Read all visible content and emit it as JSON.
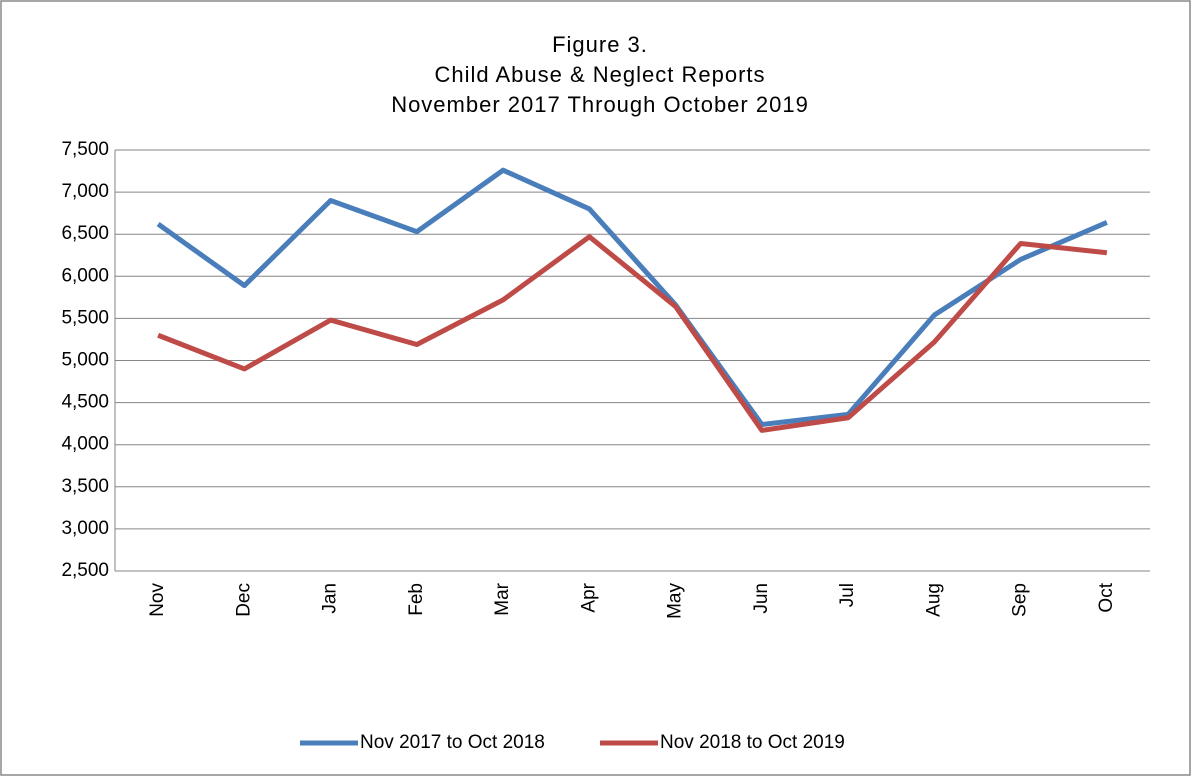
{
  "chart_data": {
    "type": "line",
    "title": [
      "Figure 3.",
      "Child Abuse & Neglect Reports",
      "November 2017 Through October 2019"
    ],
    "categories": [
      "Nov",
      "Dec",
      "Jan",
      "Feb",
      "Mar",
      "Apr",
      "May",
      "Jun",
      "Jul",
      "Aug",
      "Sep",
      "Oct"
    ],
    "series": [
      {
        "name": "Nov 2017 to Oct 2018",
        "color": "#4a7ebb",
        "values": [
          6620,
          5890,
          6900,
          6530,
          7260,
          6800,
          5660,
          4240,
          4360,
          5540,
          6200,
          6640
        ]
      },
      {
        "name": "Nov 2018 to Oct 2019",
        "color": "#be4b48",
        "values": [
          5300,
          4900,
          5480,
          5190,
          5720,
          6470,
          5640,
          4170,
          4320,
          5220,
          6390,
          6280
        ]
      }
    ],
    "ylim": [
      2500,
      7500
    ],
    "yticks": [
      {
        "value": 2500,
        "label": "2,500"
      },
      {
        "value": 3000,
        "label": "3,000"
      },
      {
        "value": 3500,
        "label": "3,500"
      },
      {
        "value": 4000,
        "label": "4,000"
      },
      {
        "value": 4500,
        "label": "4,500"
      },
      {
        "value": 5000,
        "label": "5,000"
      },
      {
        "value": 5500,
        "label": "5,500"
      },
      {
        "value": 6000,
        "label": "6,000"
      },
      {
        "value": 6500,
        "label": "6,500"
      },
      {
        "value": 7000,
        "label": "7,000"
      },
      {
        "value": 7500,
        "label": "7,500"
      }
    ],
    "grid": true,
    "legend": "bottom"
  }
}
